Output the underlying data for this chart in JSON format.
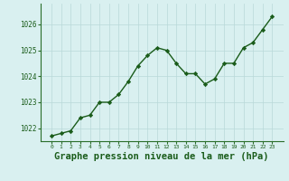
{
  "x": [
    0,
    1,
    2,
    3,
    4,
    5,
    6,
    7,
    8,
    9,
    10,
    11,
    12,
    13,
    14,
    15,
    16,
    17,
    18,
    19,
    20,
    21,
    22,
    23
  ],
  "y": [
    1021.7,
    1021.8,
    1021.9,
    1022.4,
    1022.5,
    1023.0,
    1023.0,
    1023.3,
    1023.8,
    1024.4,
    1024.8,
    1025.1,
    1025.0,
    1024.5,
    1024.1,
    1024.1,
    1023.7,
    1023.9,
    1024.5,
    1024.5,
    1025.1,
    1025.3,
    1025.8,
    1026.3
  ],
  "line_color": "#1a5c1a",
  "marker": "D",
  "marker_size": 2.2,
  "bg_color": "#d9f0f0",
  "grid_color": "#b8d8d8",
  "xlabel": "Graphe pression niveau de la mer (hPa)",
  "xlabel_color": "#1a5c1a",
  "xlabel_fontsize": 7.5,
  "tick_color": "#1a5c1a",
  "ylim": [
    1021.5,
    1026.8
  ],
  "yticks": [
    1022,
    1023,
    1024,
    1025,
    1026
  ],
  "xticks": [
    0,
    1,
    2,
    3,
    4,
    5,
    6,
    7,
    8,
    9,
    10,
    11,
    12,
    13,
    14,
    15,
    16,
    17,
    18,
    19,
    20,
    21,
    22,
    23
  ],
  "spine_color": "#2a6e2a",
  "line_width": 1.0
}
